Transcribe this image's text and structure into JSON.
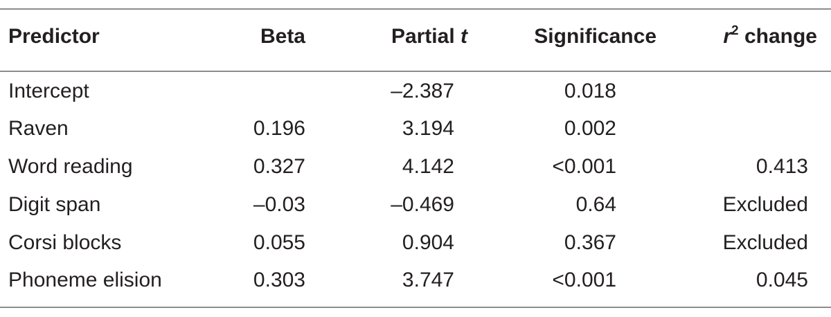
{
  "table": {
    "headers": {
      "predictor": "Predictor",
      "beta": "Beta",
      "partial_t_prefix": "Partial ",
      "partial_t_var": "t",
      "significance": "Significance",
      "r2_var": "r",
      "r2_exp": "2",
      "r2_suffix": " change"
    },
    "rows": [
      {
        "predictor": "Intercept",
        "beta": "",
        "partial_t": "–2.387",
        "significance": "0.018",
        "r2_change": ""
      },
      {
        "predictor": "Raven",
        "beta": "0.196",
        "partial_t": "3.194",
        "significance": "0.002",
        "r2_change": ""
      },
      {
        "predictor": "Word reading",
        "beta": "0.327",
        "partial_t": "4.142",
        "significance": "<0.001",
        "r2_change": "0.413"
      },
      {
        "predictor": "Digit span",
        "beta": "–0.03",
        "partial_t": "–0.469",
        "significance": "0.64",
        "r2_change": "Excluded"
      },
      {
        "predictor": "Corsi blocks",
        "beta": "0.055",
        "partial_t": "0.904",
        "significance": "0.367",
        "r2_change": "Excluded"
      },
      {
        "predictor": "Phoneme elision",
        "beta": "0.303",
        "partial_t": "3.747",
        "significance": "<0.001",
        "r2_change": "0.045"
      }
    ]
  }
}
